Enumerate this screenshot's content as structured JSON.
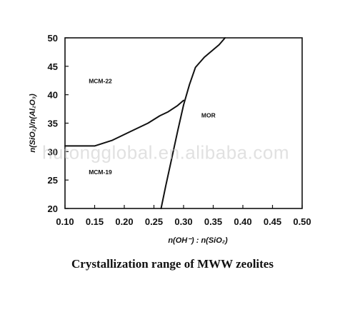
{
  "chart_data": {
    "type": "line",
    "title": "",
    "caption": "Crystallization range of MWW zeolites",
    "xlabel": "n(OH⁻) : n(SiO₂)",
    "ylabel": "n(SiO₂)/n(Al₂O₃)",
    "xlim": [
      0.1,
      0.5
    ],
    "ylim": [
      20,
      50
    ],
    "x_ticks": [
      "0.10",
      "0.15",
      "0.20",
      "0.25",
      "0.30",
      "0.35",
      "0.40",
      "0.45",
      "0.50"
    ],
    "y_ticks": [
      "20",
      "25",
      "30",
      "35",
      "40",
      "45",
      "50"
    ],
    "grid": false,
    "regions": [
      {
        "label": "MCM-22",
        "x": 0.14,
        "y": 42
      },
      {
        "label": "MCM-19",
        "x": 0.14,
        "y": 26
      },
      {
        "label": "MOR",
        "x": 0.33,
        "y": 36
      }
    ],
    "series": [
      {
        "x": [
          0.1,
          0.15,
          0.18,
          0.21,
          0.24,
          0.26,
          0.274,
          0.29,
          0.3
        ],
        "y": [
          31.0,
          31.0,
          32.0,
          33.5,
          35.0,
          36.3,
          37.0,
          38.1,
          39.0
        ]
      },
      {
        "x": [
          0.262,
          0.27,
          0.28,
          0.29,
          0.3,
          0.31,
          0.32,
          0.335,
          0.36,
          0.37
        ],
        "y": [
          20.0,
          24.0,
          28.8,
          33.6,
          38.2,
          41.8,
          44.8,
          46.6,
          48.8,
          50.0
        ]
      }
    ]
  },
  "watermark": "hutongglobal.en.alibaba.com"
}
